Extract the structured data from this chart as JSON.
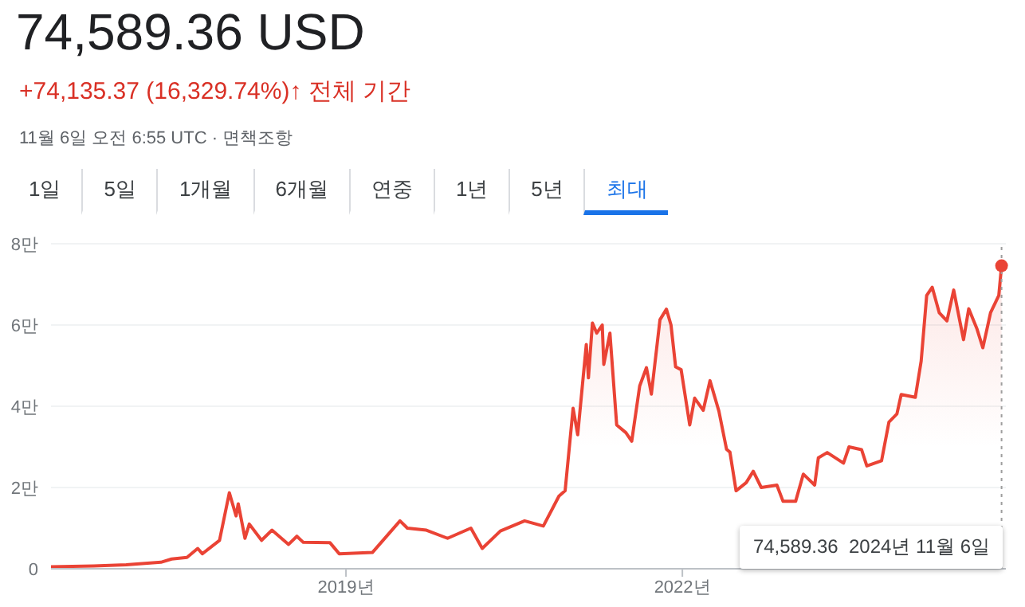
{
  "chart_data": {
    "type": "area",
    "title": "74,589.36 USD",
    "subtitle": "+74,135.37 (16,329.74%)↑ 전체 기간",
    "annotations": [
      "11월 6일 오전 6:55 UTC · 면책조항",
      "1일",
      "5일",
      "1개월",
      "6개월",
      "연중",
      "1년",
      "5년",
      "최대",
      "74,589.36  2024년 11월 6일"
    ],
    "x": [
      "2016-05-15",
      "2016-10-01",
      "2017-01-15",
      "2017-05-08",
      "2017-06-12",
      "2017-08-01",
      "2017-09-05",
      "2017-09-20",
      "2017-11-15",
      "2017-12-17",
      "2018-01-08",
      "2018-01-15",
      "2018-02-06",
      "2018-02-20",
      "2018-04-01",
      "2018-05-05",
      "2018-06-28",
      "2018-07-25",
      "2018-08-15",
      "2018-11-10",
      "2018-12-10",
      "2019-03-28",
      "2019-06-26",
      "2019-07-20",
      "2019-09-20",
      "2019-11-28",
      "2020-02-12",
      "2020-03-20",
      "2020-05-18",
      "2020-08-05",
      "2020-10-05",
      "2020-11-25",
      "2020-12-15",
      "2021-01-10",
      "2021-01-25",
      "2021-02-22",
      "2021-03-01",
      "2021-03-14",
      "2021-03-28",
      "2021-04-15",
      "2021-04-20",
      "2021-05-10",
      "2021-06-01",
      "2021-07-01",
      "2021-07-20",
      "2021-08-15",
      "2021-09-06",
      "2021-09-22",
      "2021-10-20",
      "2021-11-10",
      "2021-11-25",
      "2021-12-10",
      "2021-12-28",
      "2022-01-25",
      "2022-02-10",
      "2022-03-10",
      "2022-04-01",
      "2022-04-30",
      "2022-05-25",
      "2022-06-05",
      "2022-06-25",
      "2022-07-28",
      "2022-08-20",
      "2022-09-15",
      "2022-11-05",
      "2022-11-25",
      "2023-01-05",
      "2023-01-30",
      "2023-03-08",
      "2023-03-20",
      "2023-04-18",
      "2023-06-10",
      "2023-06-28",
      "2023-08-08",
      "2023-08-25",
      "2023-10-12",
      "2023-11-05",
      "2023-12-01",
      "2023-12-15",
      "2024-01-30",
      "2024-02-18",
      "2024-03-07",
      "2024-03-25",
      "2024-04-17",
      "2024-05-12",
      "2024-06-03",
      "2024-07-05",
      "2024-07-22",
      "2024-08-18",
      "2024-09-06",
      "2024-10-01",
      "2024-10-28",
      "2024-11-06"
    ],
    "series": [
      {
        "color": "#ea4335",
        "values": [
          0.05,
          0.07,
          0.1,
          0.16,
          0.24,
          0.28,
          0.5,
          0.37,
          0.7,
          1.87,
          1.3,
          1.6,
          0.75,
          1.1,
          0.7,
          0.95,
          0.6,
          0.8,
          0.65,
          0.64,
          0.37,
          0.4,
          1.18,
          1.0,
          0.95,
          0.75,
          1.0,
          0.5,
          0.93,
          1.18,
          1.05,
          1.79,
          1.92,
          3.95,
          3.3,
          5.52,
          4.7,
          6.05,
          5.8,
          6.0,
          5.03,
          5.8,
          3.54,
          3.35,
          3.14,
          4.5,
          4.95,
          4.3,
          6.13,
          6.39,
          6.0,
          4.97,
          4.9,
          3.54,
          4.2,
          3.9,
          4.63,
          3.88,
          2.94,
          2.87,
          1.92,
          2.12,
          2.4,
          2.0,
          2.06,
          1.66,
          1.66,
          2.33,
          2.06,
          2.73,
          2.86,
          2.6,
          3.0,
          2.93,
          2.53,
          2.66,
          3.61,
          3.81,
          4.29,
          4.22,
          5.11,
          6.73,
          6.93,
          6.3,
          6.1,
          6.86,
          5.64,
          6.4,
          5.9,
          5.44,
          6.3,
          6.73,
          7.46
        ]
      }
    ],
    "xlim": [
      "2016-05-15",
      "2024-11-20"
    ],
    "xticks": [
      {
        "value": "2019-01-01",
        "label": "2019년"
      },
      {
        "value": "2022-01-01",
        "label": "2022년"
      }
    ],
    "ylim": [
      0,
      8
    ],
    "yticks": [
      0,
      {
        "value": 2,
        "label": "2만"
      },
      {
        "value": 4,
        "label": "4만"
      },
      {
        "value": 6,
        "label": "6만"
      },
      {
        "value": 8,
        "label": "8만"
      }
    ],
    "ref_lines": [
      {
        "axis": "x",
        "value": "2024-11-06",
        "color": "#9e9e9e",
        "line_style": "dotted"
      }
    ],
    "grid": "y"
  }
}
